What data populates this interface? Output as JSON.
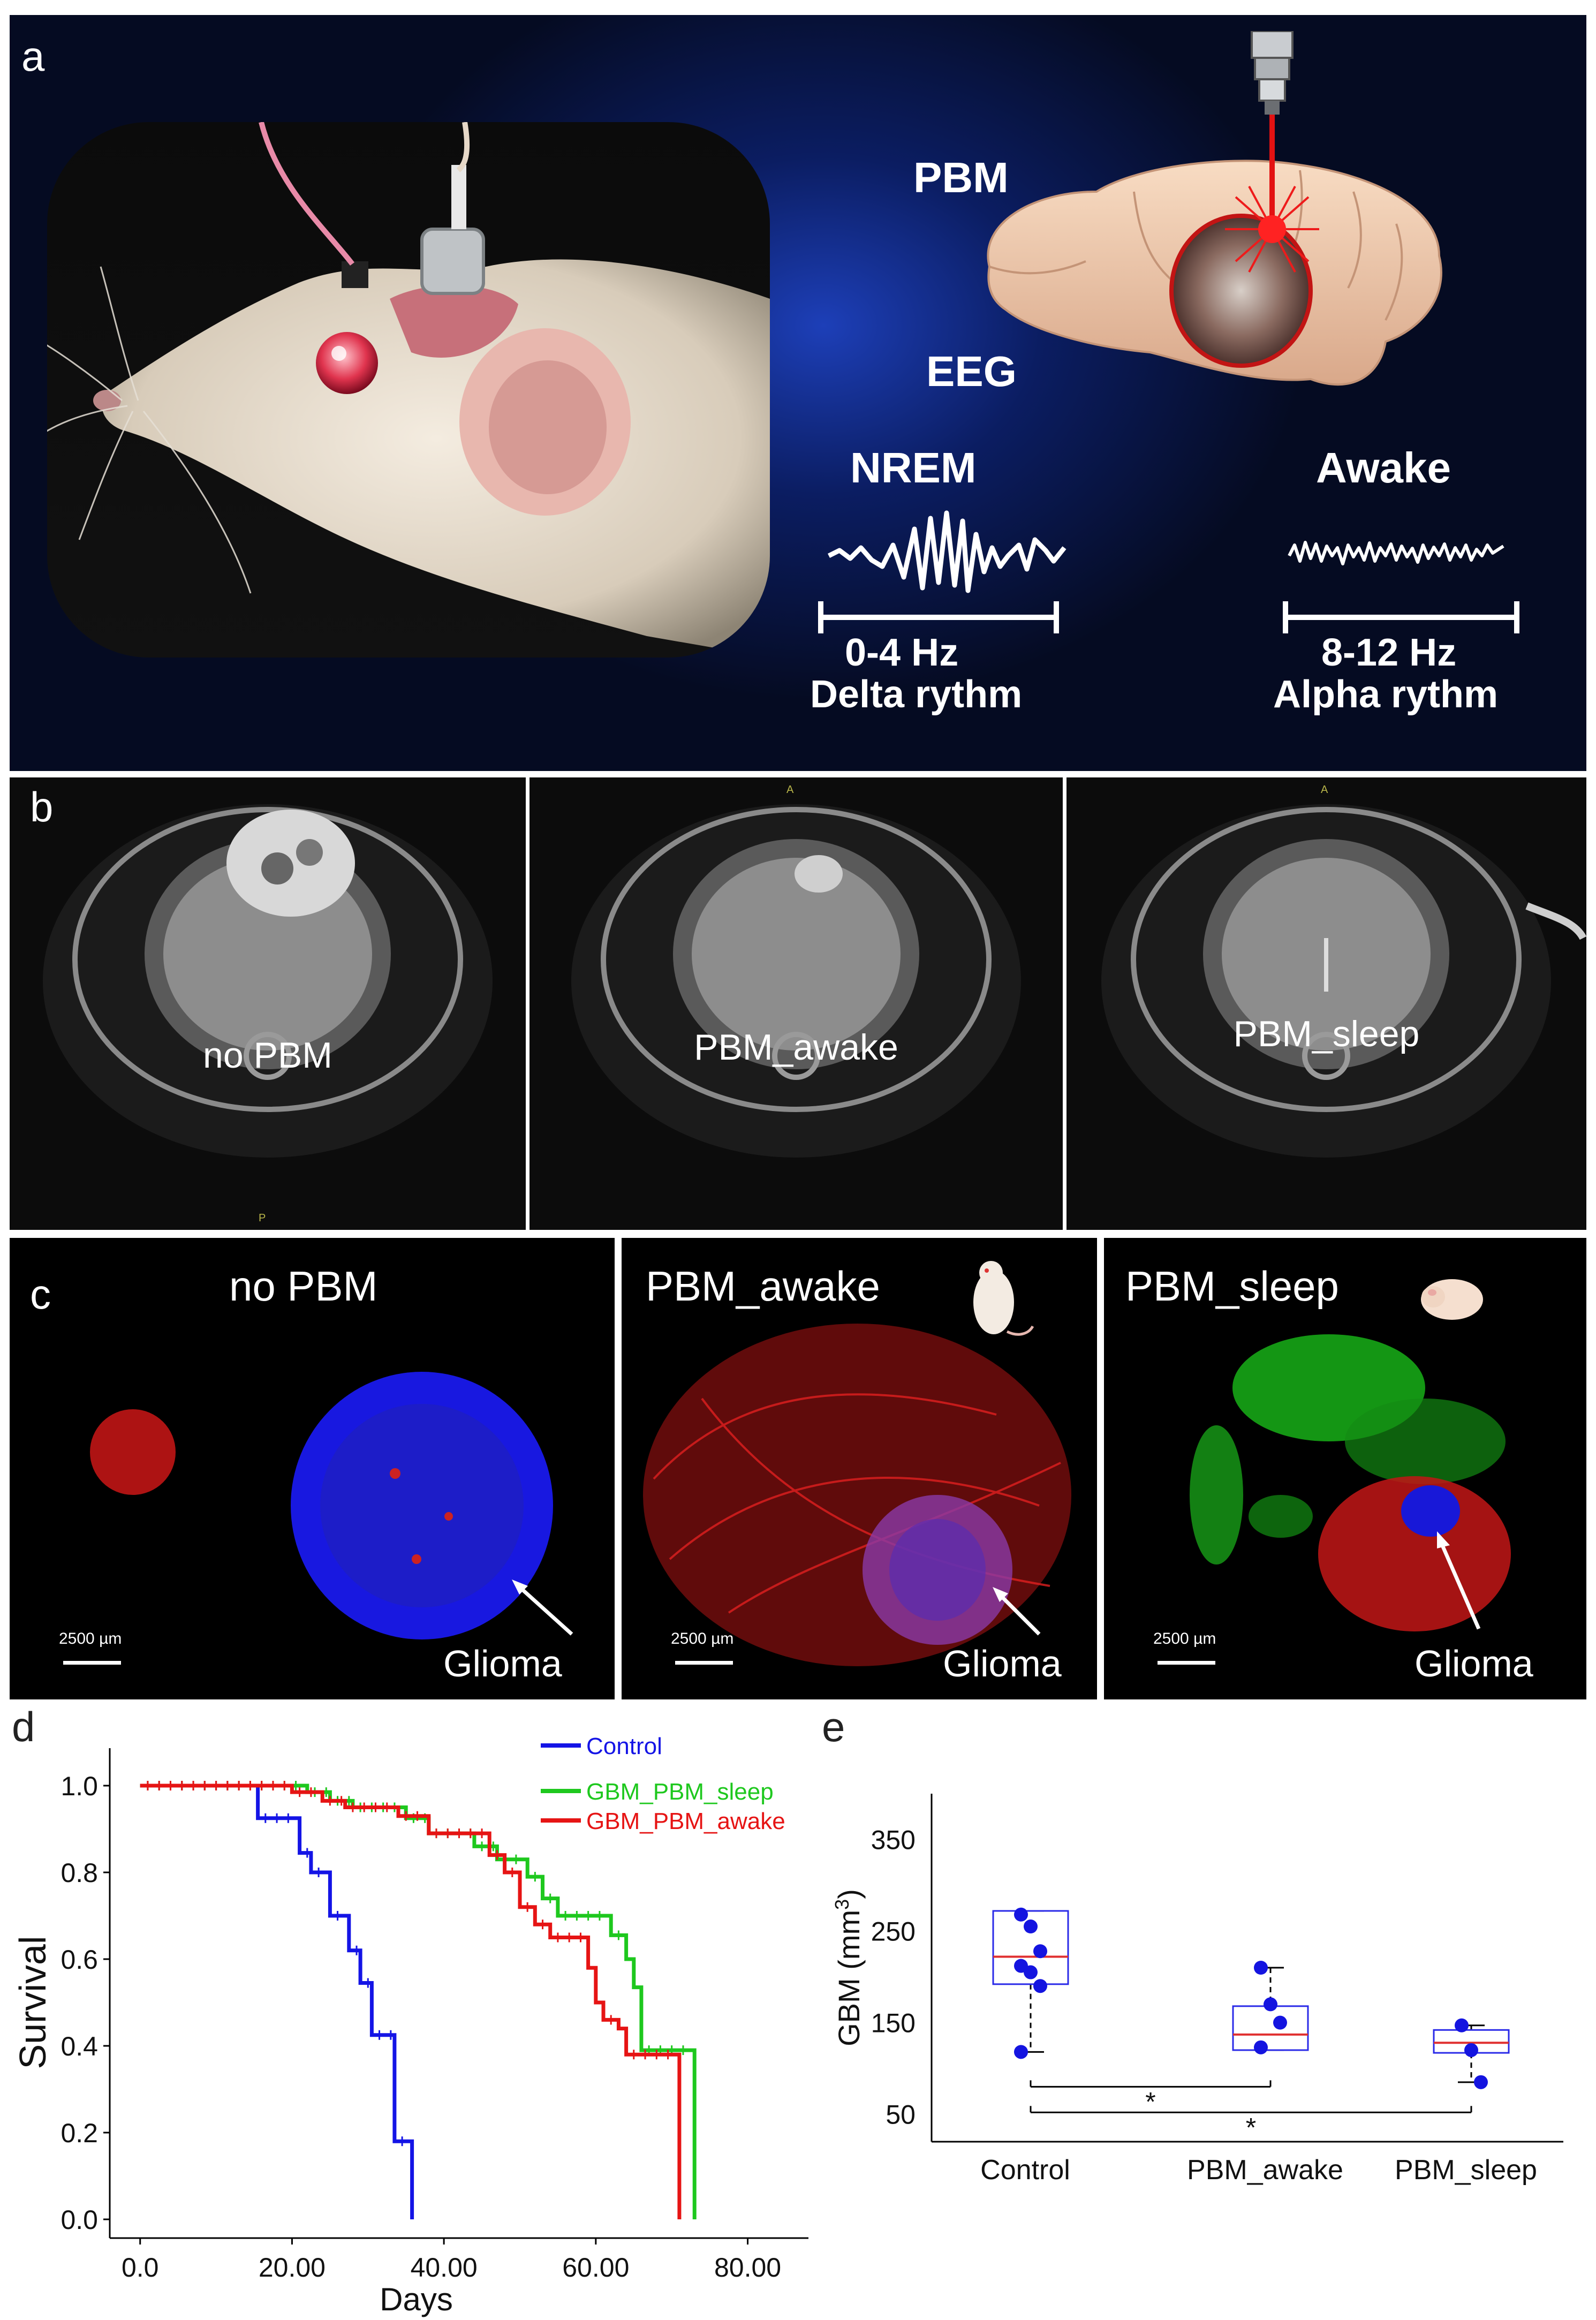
{
  "panels": {
    "a": {
      "letter": "a",
      "pbm": "PBM",
      "eeg": "EEG",
      "nrem": "NREM",
      "awake": "Awake",
      "nrem_freq": "0-4 Hz",
      "nrem_rhythm": "Delta rythm",
      "awake_freq": "8-12 Hz",
      "awake_rhythm": "Alpha rythm"
    },
    "b": {
      "letter": "b",
      "labels": [
        "no PBM",
        "PBM_awake",
        "PBM_sleep"
      ],
      "markers": [
        "P",
        "A",
        "A"
      ]
    },
    "c": {
      "letter": "c",
      "titles": [
        "no PBM",
        "PBM_awake",
        "PBM_sleep"
      ],
      "scale": "2500 µm",
      "glioma": "Glioma"
    },
    "d": {
      "letter": "d"
    },
    "e": {
      "letter": "e"
    }
  },
  "colors": {
    "control": "#1414e6",
    "sleep": "#1ec81e",
    "awake": "#e61414",
    "median": "#e03030"
  },
  "chart_data": [
    {
      "type": "line",
      "subtype": "kaplan-meier",
      "xlabel": "Days",
      "ylabel": "Survival",
      "xlim": [
        0,
        80
      ],
      "ylim": [
        0,
        1.0
      ],
      "xticks": [
        "0.0",
        "20.00",
        "40.00",
        "60.00",
        "80.00"
      ],
      "yticks": [
        "0.0",
        "0.2",
        "0.4",
        "0.6",
        "0.8",
        "1.0"
      ],
      "legend_position": "top-right",
      "series": [
        {
          "name": "Control",
          "steps": [
            [
              0,
              1.0
            ],
            [
              15.5,
              1.0
            ],
            [
              15.5,
              0.925
            ],
            [
              21,
              0.925
            ],
            [
              21,
              0.845
            ],
            [
              22.5,
              0.845
            ],
            [
              22.5,
              0.8
            ],
            [
              25,
              0.8
            ],
            [
              25,
              0.7
            ],
            [
              27.5,
              0.7
            ],
            [
              27.5,
              0.62
            ],
            [
              29,
              0.62
            ],
            [
              29,
              0.545
            ],
            [
              30.5,
              0.545
            ],
            [
              30.5,
              0.425
            ],
            [
              33.5,
              0.425
            ],
            [
              33.5,
              0.18
            ],
            [
              35.8,
              0.18
            ],
            [
              35.8,
              0.0
            ]
          ]
        },
        {
          "name": "GBM_PBM_sleep",
          "steps": [
            [
              0,
              1.0
            ],
            [
              22,
              1.0
            ],
            [
              22,
              0.985
            ],
            [
              25,
              0.985
            ],
            [
              25,
              0.965
            ],
            [
              28,
              0.965
            ],
            [
              28,
              0.95
            ],
            [
              35,
              0.95
            ],
            [
              35,
              0.925
            ],
            [
              38,
              0.925
            ],
            [
              38,
              0.89
            ],
            [
              44,
              0.89
            ],
            [
              44,
              0.86
            ],
            [
              47,
              0.86
            ],
            [
              47,
              0.83
            ],
            [
              51,
              0.83
            ],
            [
              51,
              0.79
            ],
            [
              53,
              0.79
            ],
            [
              53,
              0.74
            ],
            [
              55,
              0.74
            ],
            [
              55,
              0.7
            ],
            [
              62,
              0.7
            ],
            [
              62,
              0.655
            ],
            [
              64,
              0.655
            ],
            [
              64,
              0.6
            ],
            [
              65,
              0.6
            ],
            [
              65,
              0.535
            ],
            [
              66,
              0.535
            ],
            [
              66,
              0.39
            ],
            [
              73,
              0.39
            ],
            [
              73,
              0.0
            ]
          ]
        },
        {
          "name": "GBM_PBM_awake",
          "steps": [
            [
              0,
              1.0
            ],
            [
              20,
              1.0
            ],
            [
              20,
              0.985
            ],
            [
              24,
              0.985
            ],
            [
              24,
              0.965
            ],
            [
              27,
              0.965
            ],
            [
              27,
              0.95
            ],
            [
              34,
              0.95
            ],
            [
              34,
              0.93
            ],
            [
              38,
              0.93
            ],
            [
              38,
              0.89
            ],
            [
              46,
              0.89
            ],
            [
              46,
              0.84
            ],
            [
              48,
              0.84
            ],
            [
              48,
              0.8
            ],
            [
              50,
              0.8
            ],
            [
              50,
              0.72
            ],
            [
              52,
              0.72
            ],
            [
              52,
              0.68
            ],
            [
              54,
              0.68
            ],
            [
              54,
              0.65
            ],
            [
              59,
              0.65
            ],
            [
              59,
              0.58
            ],
            [
              60,
              0.58
            ],
            [
              60,
              0.5
            ],
            [
              61,
              0.5
            ],
            [
              61,
              0.46
            ],
            [
              63,
              0.46
            ],
            [
              63,
              0.44
            ],
            [
              64,
              0.44
            ],
            [
              64,
              0.38
            ],
            [
              71,
              0.38
            ],
            [
              71,
              0.0
            ]
          ]
        }
      ]
    },
    {
      "type": "box",
      "ylabel": "GBM (mm",
      "ylabel_sup": "3",
      "ylabel_close": ")",
      "ylim": [
        20,
        400
      ],
      "yticks": [
        50,
        150,
        250,
        350
      ],
      "categories": [
        "Control",
        "PBM_awake",
        "PBM_sleep"
      ],
      "boxes": [
        {
          "name": "Control",
          "q1": 192,
          "median": 222,
          "q3": 272,
          "whisker_low": 118,
          "whisker_high": 272,
          "points": [
            268,
            255,
            228,
            212,
            205,
            190,
            118
          ]
        },
        {
          "name": "PBM_awake",
          "q1": 120,
          "median": 137,
          "q3": 168,
          "whisker_low": 120,
          "whisker_high": 210,
          "points": [
            210,
            170,
            150,
            123
          ]
        },
        {
          "name": "PBM_sleep",
          "q1": 117,
          "median": 128,
          "q3": 142,
          "whisker_low": 85,
          "whisker_high": 147,
          "points": [
            147,
            120,
            85
          ]
        }
      ],
      "significance": [
        {
          "from": "Control",
          "to": "PBM_awake",
          "label": "*"
        },
        {
          "from": "Control",
          "to": "PBM_sleep",
          "label": "*"
        }
      ]
    }
  ]
}
